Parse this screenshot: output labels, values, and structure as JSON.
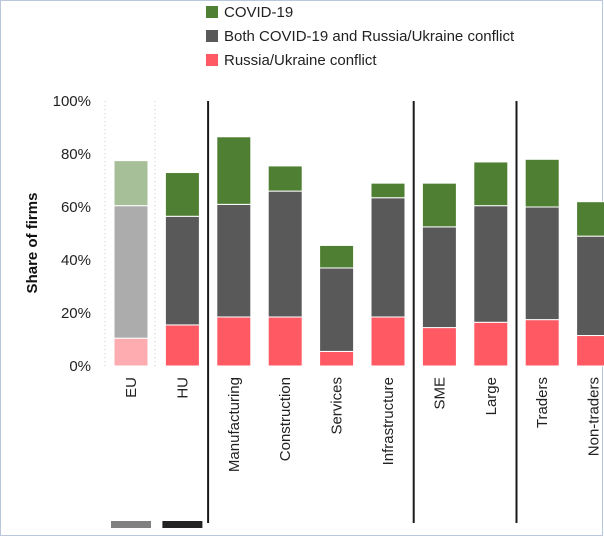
{
  "chart_data": {
    "type": "bar",
    "stacked": true,
    "ylabel": "Share of firms",
    "ylim": [
      0,
      100
    ],
    "yticks": [
      "0%",
      "20%",
      "40%",
      "60%",
      "80%",
      "100%"
    ],
    "categories": [
      "EU",
      "HU",
      "Manufacturing",
      "Construction",
      "Services",
      "Infrastructure",
      "SME",
      "Large",
      "Traders",
      "Non-traders"
    ],
    "series": [
      {
        "name": "Russia/Ukraine conflict",
        "color": "#ff5a64",
        "values": [
          10.5,
          15.5,
          18.5,
          18.5,
          5.5,
          18.5,
          14.5,
          16.5,
          17.5,
          11.5
        ]
      },
      {
        "name": "Both COVID-19 and Russia/Ukraine conflict",
        "color": "#595959",
        "values": [
          50.0,
          41.0,
          42.5,
          47.5,
          31.5,
          45.0,
          38.0,
          44.0,
          42.5,
          37.5
        ]
      },
      {
        "name": "COVID-19",
        "color": "#4e7f32",
        "values": [
          17.0,
          16.5,
          25.5,
          9.5,
          8.5,
          5.5,
          16.5,
          16.5,
          18.0,
          13.0
        ]
      }
    ],
    "faded_categories": [
      "EU"
    ],
    "group_separators_after": [
      "HU",
      "Infrastructure",
      "Large"
    ],
    "grid": false,
    "legend_position": "top"
  },
  "markers": [
    {
      "category": "EU",
      "color": "#808080"
    },
    {
      "category": "HU",
      "color": "#222222"
    }
  ]
}
